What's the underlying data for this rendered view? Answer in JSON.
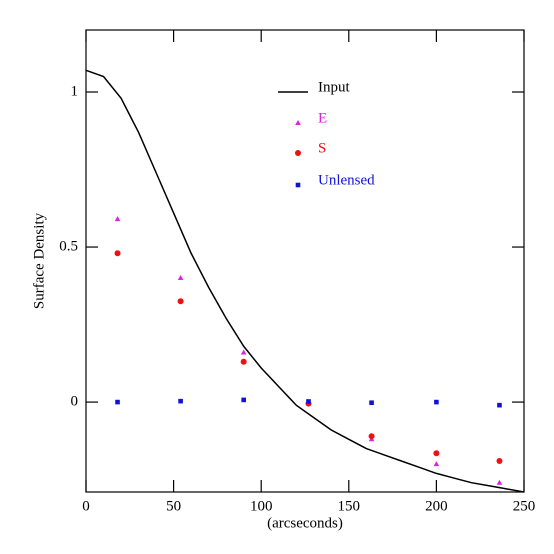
{
  "chart_data": {
    "type": "line",
    "xlabel": "(arcseconds)",
    "ylabel": "Surface Density",
    "xlim": [
      0,
      250
    ],
    "ylim": [
      -0.29,
      1.2
    ],
    "xticks": [
      0,
      50,
      100,
      150,
      200,
      250
    ],
    "yticks": [
      0,
      0.5,
      1
    ],
    "series": [
      {
        "name": "Input",
        "color": "#000000",
        "marker": "line",
        "x": [
          0,
          10,
          20,
          30,
          40,
          50,
          60,
          70,
          80,
          90,
          100,
          110,
          120,
          130,
          140,
          150,
          160,
          170,
          180,
          190,
          200,
          210,
          220,
          230,
          240,
          250
        ],
        "values": [
          1.07,
          1.05,
          0.98,
          0.87,
          0.74,
          0.61,
          0.48,
          0.37,
          0.27,
          0.18,
          0.11,
          0.05,
          -0.01,
          -0.05,
          -0.09,
          -0.12,
          -0.15,
          -0.17,
          -0.19,
          -0.21,
          -0.23,
          -0.245,
          -0.26,
          -0.27,
          -0.28,
          -0.29
        ]
      },
      {
        "name": "E",
        "color": "#e020e0",
        "marker": "triangle",
        "x": [
          18,
          54,
          90,
          127,
          163,
          200,
          236
        ],
        "values": [
          0.59,
          0.4,
          0.16,
          0.0,
          -0.12,
          -0.2,
          -0.26
        ]
      },
      {
        "name": "S",
        "color": "#ee1111",
        "marker": "circle",
        "x": [
          18,
          54,
          90,
          127,
          163,
          200,
          236
        ],
        "values": [
          0.48,
          0.325,
          0.13,
          -0.005,
          -0.11,
          -0.165,
          -0.19
        ]
      },
      {
        "name": "Unlensed",
        "color": "#1111dd",
        "marker": "square",
        "x": [
          18,
          54,
          90,
          127,
          163,
          200,
          236
        ],
        "values": [
          0.0,
          0.003,
          0.007,
          0.002,
          -0.002,
          0.0,
          -0.01
        ]
      }
    ]
  }
}
